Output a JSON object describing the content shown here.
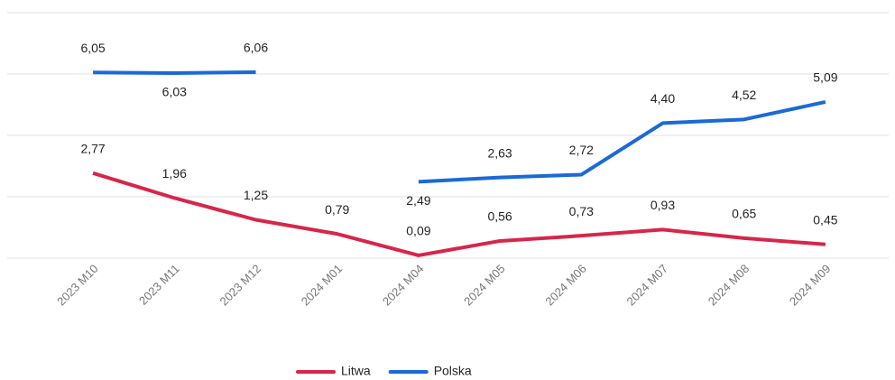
{
  "chart_data": {
    "type": "line",
    "categories": [
      "2023 M10",
      "2023 M11",
      "2023 M12",
      "2024 M01",
      "2024 M04",
      "2024 M05",
      "2024 M06",
      "2024 M07",
      "2024 M08",
      "2024 M09"
    ],
    "series": [
      {
        "name": "Litwa",
        "color": "#d6264a",
        "values": [
          2.77,
          1.96,
          1.25,
          0.79,
          0.09,
          0.56,
          0.73,
          0.93,
          0.65,
          0.45
        ],
        "value_labels": [
          "2,77",
          "1,96",
          "1,25",
          "0,79",
          "0,09",
          "0,56",
          "0,73",
          "0,93",
          "0,65",
          "0,45"
        ]
      },
      {
        "name": "Polska",
        "color": "#1a6ad6",
        "values": [
          6.05,
          6.03,
          6.06,
          null,
          2.49,
          2.63,
          2.72,
          4.4,
          4.52,
          5.09
        ],
        "value_labels": [
          "6,05",
          "6,03",
          "6,06",
          null,
          "2,49",
          "2,63",
          "2,72",
          "4,40",
          "4,52",
          "5,09"
        ]
      }
    ],
    "ylim": [
      0,
      8
    ],
    "yticks": [
      0,
      2,
      4,
      6,
      8
    ],
    "grid": true,
    "legend": "bottom"
  }
}
